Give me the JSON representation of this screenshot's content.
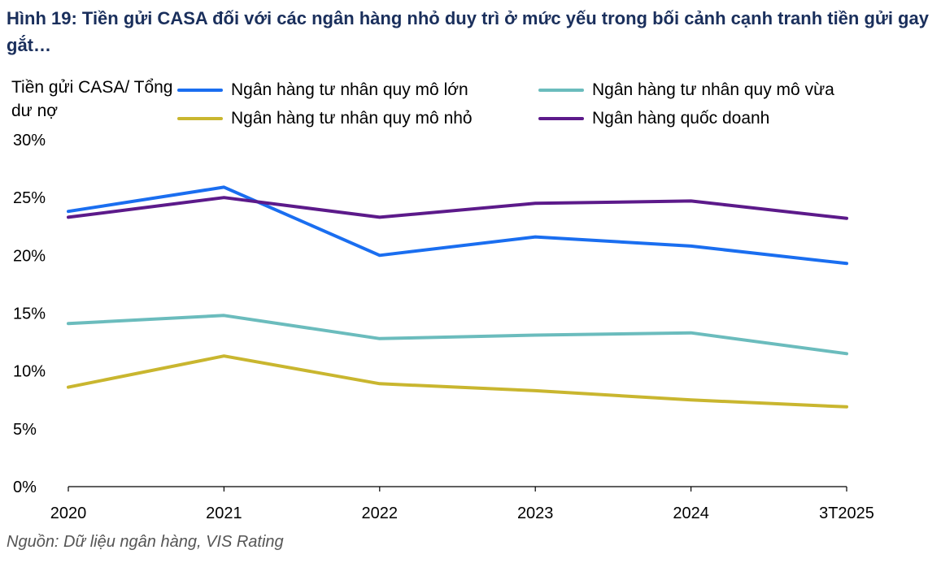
{
  "title": "Hình 19: Tiền gửi CASA đối với các ngân hàng nhỏ duy trì ở mức yếu trong bối cảnh cạnh tranh tiền gửi gay gắt…",
  "source": "Nguồn: Dữ liệu ngân hàng, VIS Rating",
  "chart_data": {
    "type": "line",
    "ylabel": "Tiền gửi CASA/ Tổng dư nợ",
    "xlabel": "",
    "categories": [
      "2020",
      "2021",
      "2022",
      "2023",
      "2024",
      "3T2025"
    ],
    "ylim": [
      0,
      30
    ],
    "yticks": [
      "0%",
      "5%",
      "10%",
      "15%",
      "20%",
      "25%",
      "30%"
    ],
    "y_tick_values": [
      0,
      5,
      10,
      15,
      20,
      25,
      30
    ],
    "grid": false,
    "legend_position": "top",
    "series": [
      {
        "name": "Ngân hàng tư nhân quy mô lớn",
        "color": "#1a6ef0",
        "values": [
          23.8,
          25.9,
          20.0,
          21.6,
          20.8,
          19.3
        ]
      },
      {
        "name": "Ngân hàng tư nhân quy mô vừa",
        "color": "#6bbcbd",
        "values": [
          14.1,
          14.8,
          12.8,
          13.1,
          13.3,
          11.5
        ]
      },
      {
        "name": "Ngân hàng tư nhân quy mô nhỏ",
        "color": "#c9b62f",
        "values": [
          8.6,
          11.3,
          8.9,
          8.3,
          7.5,
          6.9
        ]
      },
      {
        "name": "Ngân hàng quốc doanh",
        "color": "#5c1a8a",
        "values": [
          23.3,
          25.0,
          23.3,
          24.5,
          24.7,
          23.2
        ]
      }
    ]
  }
}
